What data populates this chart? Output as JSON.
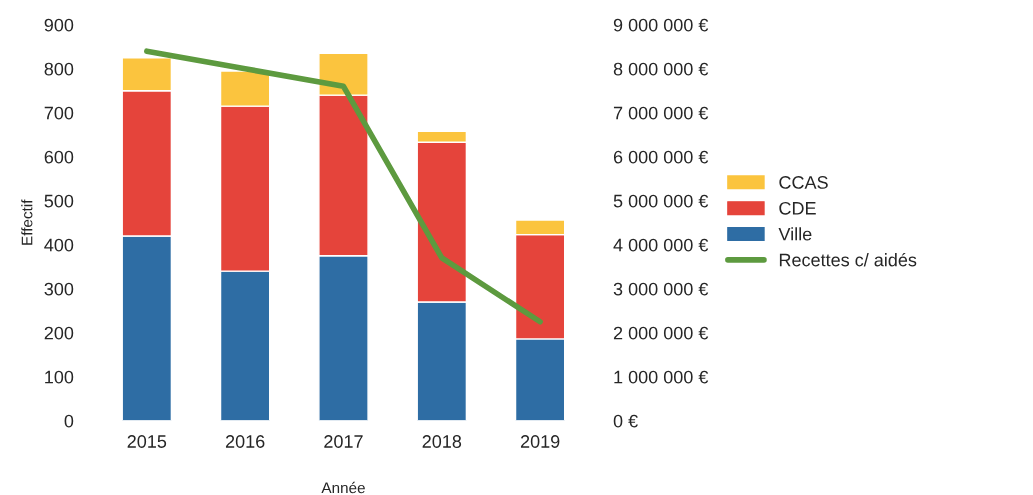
{
  "chart_data": {
    "type": "bar",
    "stacked": true,
    "xlabel": "Année",
    "ylabel": "Effectif",
    "categories": [
      "2015",
      "2016",
      "2017",
      "2018",
      "2019"
    ],
    "series": [
      {
        "name": "Ville",
        "color": "#2e6da4",
        "values": [
          420,
          340,
          375,
          270,
          186
        ]
      },
      {
        "name": "CDE",
        "color": "#e5443b",
        "values": [
          330,
          375,
          365,
          363,
          237
        ]
      },
      {
        "name": "CCAS",
        "color": "#fbc43e",
        "values": [
          75,
          80,
          95,
          25,
          33
        ]
      },
      {
        "name": "Recettes c/ aidés",
        "type": "line",
        "axis": "y2",
        "color": "#5d9a3f",
        "values": [
          8400000,
          8000000,
          7600000,
          3700000,
          2250000
        ]
      }
    ],
    "ylim": [
      0,
      900
    ],
    "yticks": [
      0,
      100,
      200,
      300,
      400,
      500,
      600,
      700,
      800,
      900
    ],
    "y2lim": [
      0,
      9000000
    ],
    "y2ticks": [
      {
        "value": 0,
        "label": "0 €"
      },
      {
        "value": 1000000,
        "label": "1 000 000 €"
      },
      {
        "value": 2000000,
        "label": "2 000 000 €"
      },
      {
        "value": 3000000,
        "label": "3 000 000 €"
      },
      {
        "value": 4000000,
        "label": "4 000 000 €"
      },
      {
        "value": 5000000,
        "label": "5 000 000 €"
      },
      {
        "value": 6000000,
        "label": "6 000 000 €"
      },
      {
        "value": 7000000,
        "label": "7 000 000 €"
      },
      {
        "value": 8000000,
        "label": "8 000 000 €"
      },
      {
        "value": 9000000,
        "label": "9 000 000 €"
      }
    ],
    "legend": "right"
  }
}
